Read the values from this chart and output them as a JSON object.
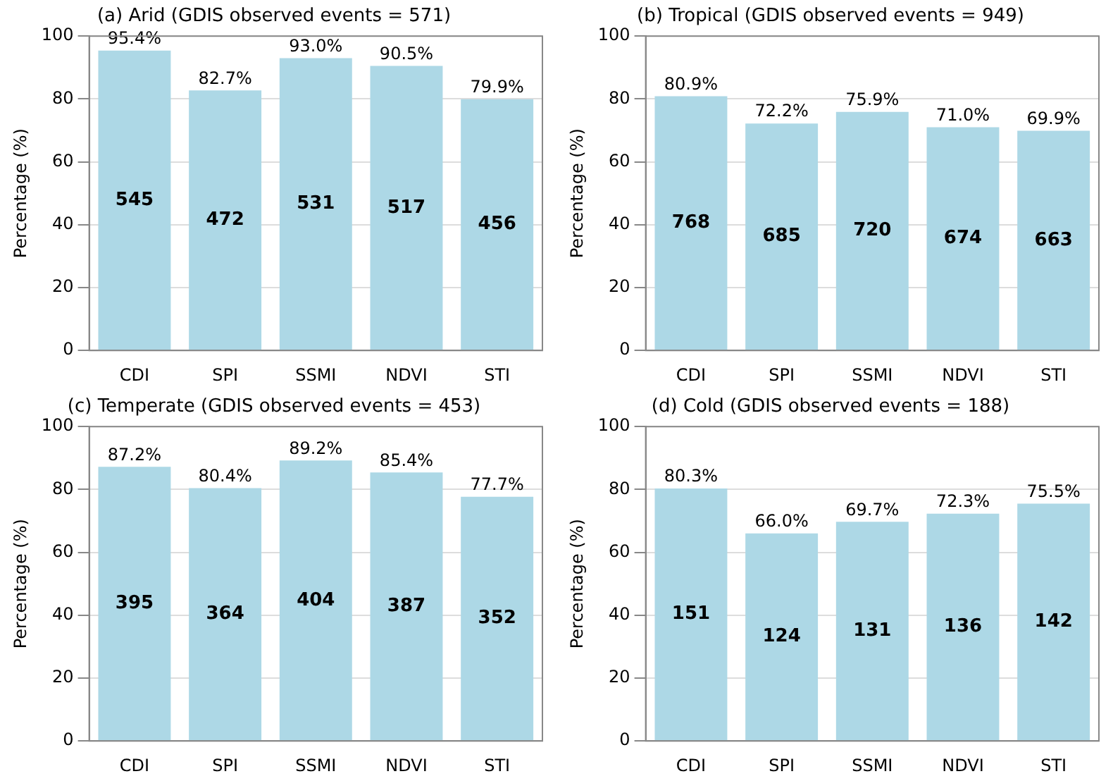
{
  "chart_data": [
    {
      "type": "bar",
      "title": "(a) Arid (GDIS observed events = 571)",
      "ylabel": "Percentage (%)",
      "categories": [
        "CDI",
        "SPI",
        "SSMI",
        "NDVI",
        "STI"
      ],
      "values": [
        95.4,
        82.7,
        93.0,
        90.5,
        79.9
      ],
      "color": "#add8e6",
      "value_labels": [
        "95.4%",
        "82.7%",
        "93.0%",
        "90.5%",
        "79.9%"
      ],
      "ylim": [
        0,
        100
      ],
      "yticks": [
        0,
        20,
        40,
        60,
        80,
        100
      ],
      "grid": "y",
      "annotations": [
        "545",
        "472",
        "531",
        "517",
        "456"
      ]
    },
    {
      "type": "bar",
      "title": "(b) Tropical (GDIS observed events = 949)",
      "ylabel": "Percentage (%)",
      "categories": [
        "CDI",
        "SPI",
        "SSMI",
        "NDVI",
        "STI"
      ],
      "values": [
        80.9,
        72.2,
        75.9,
        71.0,
        69.9
      ],
      "color": "#add8e6",
      "value_labels": [
        "80.9%",
        "72.2%",
        "75.9%",
        "71.0%",
        "69.9%"
      ],
      "ylim": [
        0,
        100
      ],
      "yticks": [
        0,
        20,
        40,
        60,
        80,
        100
      ],
      "grid": "y",
      "annotations": [
        "768",
        "685",
        "720",
        "674",
        "663"
      ]
    },
    {
      "type": "bar",
      "title": "(c) Temperate (GDIS observed events = 453)",
      "ylabel": "Percentage (%)",
      "categories": [
        "CDI",
        "SPI",
        "SSMI",
        "NDVI",
        "STI"
      ],
      "values": [
        87.2,
        80.4,
        89.2,
        85.4,
        77.7
      ],
      "color": "#add8e6",
      "value_labels": [
        "87.2%",
        "80.4%",
        "89.2%",
        "85.4%",
        "77.7%"
      ],
      "ylim": [
        0,
        100
      ],
      "yticks": [
        0,
        20,
        40,
        60,
        80,
        100
      ],
      "grid": "y",
      "annotations": [
        "395",
        "364",
        "404",
        "387",
        "352"
      ]
    },
    {
      "type": "bar",
      "title": "(d) Cold (GDIS observed events = 188)",
      "ylabel": "Percentage (%)",
      "categories": [
        "CDI",
        "SPI",
        "SSMI",
        "NDVI",
        "STI"
      ],
      "values": [
        80.3,
        66.0,
        69.7,
        72.3,
        75.5
      ],
      "color": "#add8e6",
      "value_labels": [
        "80.3%",
        "66.0%",
        "69.7%",
        "72.3%",
        "75.5%"
      ],
      "ylim": [
        0,
        100
      ],
      "yticks": [
        0,
        20,
        40,
        60,
        80,
        100
      ],
      "grid": "y",
      "annotations": [
        "151",
        "124",
        "131",
        "136",
        "142"
      ]
    }
  ]
}
